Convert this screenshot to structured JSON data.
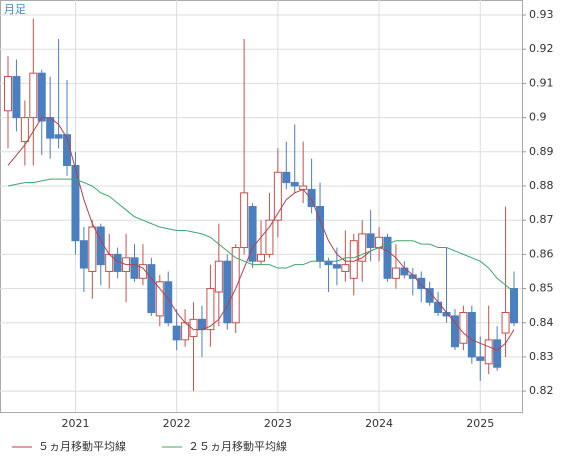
{
  "chart_data": {
    "type": "candlestick",
    "label": "月足",
    "categories": [
      null,
      null,
      null,
      null,
      null,
      null,
      null,
      null,
      "2021",
      null,
      null,
      null,
      null,
      null,
      null,
      null,
      null,
      null,
      null,
      null,
      "2022",
      null,
      null,
      null,
      null,
      null,
      null,
      null,
      null,
      null,
      null,
      null,
      "2023",
      null,
      null,
      null,
      null,
      null,
      null,
      null,
      null,
      null,
      null,
      null,
      "2024",
      null,
      null,
      null,
      null,
      null,
      null,
      null,
      null,
      null,
      null,
      null,
      "2025",
      null,
      null,
      null,
      null
    ],
    "open": [
      0.902,
      0.912,
      0.893,
      0.9,
      0.913,
      0.9,
      0.895,
      0.895,
      0.886,
      0.864,
      0.855,
      0.868,
      0.855,
      0.86,
      0.855,
      0.859,
      0.853,
      0.857,
      0.842,
      0.852,
      0.839,
      0.835,
      0.836,
      0.841,
      0.838,
      0.849,
      0.858,
      0.84,
      0.862,
      0.874,
      0.858,
      0.86,
      0.87,
      0.884,
      0.881,
      0.879,
      0.879,
      0.874,
      0.858,
      0.857,
      0.855,
      0.853,
      0.858,
      0.866,
      0.862,
      0.865,
      0.853,
      0.856,
      0.854,
      0.853,
      0.85,
      0.846,
      0.843,
      0.842,
      0.834,
      0.843,
      0.83,
      0.828,
      0.835,
      0.837,
      0.85
    ],
    "high": [
      0.918,
      0.917,
      0.905,
      0.929,
      0.914,
      0.912,
      0.923,
      0.911,
      0.89,
      0.868,
      0.87,
      0.869,
      0.866,
      0.862,
      0.866,
      0.863,
      0.863,
      0.859,
      0.854,
      0.855,
      0.844,
      0.844,
      0.846,
      0.845,
      0.857,
      0.869,
      0.86,
      0.863,
      0.923,
      0.875,
      0.87,
      0.878,
      0.891,
      0.893,
      0.898,
      0.893,
      0.888,
      0.881,
      0.859,
      0.862,
      0.867,
      0.866,
      0.87,
      0.873,
      0.868,
      0.866,
      0.863,
      0.858,
      0.856,
      0.855,
      0.852,
      0.849,
      0.862,
      0.844,
      0.845,
      0.845,
      0.836,
      0.845,
      0.839,
      0.874,
      0.855
    ],
    "low": [
      0.891,
      0.896,
      0.886,
      0.886,
      0.889,
      0.888,
      0.891,
      0.883,
      0.86,
      0.849,
      0.847,
      0.851,
      0.85,
      0.853,
      0.846,
      0.852,
      0.851,
      0.842,
      0.839,
      0.839,
      0.832,
      0.833,
      0.82,
      0.83,
      0.833,
      0.839,
      0.838,
      0.837,
      0.86,
      0.856,
      0.857,
      0.859,
      0.865,
      0.879,
      0.878,
      0.875,
      0.872,
      0.856,
      0.849,
      0.851,
      0.852,
      0.848,
      0.852,
      0.858,
      0.858,
      0.852,
      0.85,
      0.853,
      0.848,
      0.846,
      0.845,
      0.842,
      0.84,
      0.832,
      0.832,
      0.828,
      0.823,
      0.825,
      0.826,
      0.83,
      0.839
    ],
    "close": [
      0.912,
      0.9,
      0.9,
      0.913,
      0.899,
      0.894,
      0.894,
      0.886,
      0.864,
      0.856,
      0.868,
      0.857,
      0.86,
      0.855,
      0.859,
      0.853,
      0.857,
      0.843,
      0.852,
      0.84,
      0.835,
      0.84,
      0.841,
      0.838,
      0.85,
      0.858,
      0.84,
      0.862,
      0.878,
      0.858,
      0.86,
      0.87,
      0.884,
      0.881,
      0.88,
      0.88,
      0.874,
      0.858,
      0.857,
      0.856,
      0.857,
      0.864,
      0.866,
      0.862,
      0.865,
      0.853,
      0.856,
      0.854,
      0.853,
      0.85,
      0.846,
      0.843,
      0.842,
      0.833,
      0.843,
      0.83,
      0.829,
      0.835,
      0.827,
      0.843,
      0.84
    ],
    "up_color": "#c8504a",
    "down_color": "#4a7fc0",
    "series": [
      {
        "name": "５ヵ月移動平均線",
        "color": "#b8404a",
        "values": [
          0.886,
          0.889,
          0.892,
          0.896,
          0.9,
          0.9,
          0.898,
          0.894,
          0.885,
          0.876,
          0.869,
          0.864,
          0.86,
          0.858,
          0.857,
          0.857,
          0.856,
          0.853,
          0.85,
          0.847,
          0.843,
          0.84,
          0.838,
          0.838,
          0.839,
          0.841,
          0.845,
          0.85,
          0.856,
          0.862,
          0.865,
          0.868,
          0.872,
          0.876,
          0.878,
          0.879,
          0.876,
          0.87,
          0.864,
          0.86,
          0.858,
          0.858,
          0.859,
          0.861,
          0.862,
          0.861,
          0.859,
          0.856,
          0.854,
          0.851,
          0.849,
          0.846,
          0.843,
          0.84,
          0.837,
          0.835,
          0.834,
          0.833,
          0.832,
          0.834,
          0.838
        ]
      },
      {
        "name": "２５ヵ月移動平均線",
        "color": "#3aa86a",
        "values": [
          0.88,
          0.8805,
          0.881,
          0.881,
          0.8815,
          0.882,
          0.882,
          0.882,
          0.882,
          0.881,
          0.88,
          0.878,
          0.877,
          0.875,
          0.873,
          0.871,
          0.87,
          0.869,
          0.868,
          0.8675,
          0.867,
          0.867,
          0.8665,
          0.866,
          0.865,
          0.863,
          0.861,
          0.859,
          0.858,
          0.857,
          0.857,
          0.857,
          0.856,
          0.856,
          0.857,
          0.857,
          0.858,
          0.858,
          0.858,
          0.858,
          0.859,
          0.859,
          0.86,
          0.861,
          0.862,
          0.863,
          0.864,
          0.864,
          0.864,
          0.863,
          0.863,
          0.862,
          0.862,
          0.861,
          0.86,
          0.859,
          0.858,
          0.856,
          0.853,
          0.851,
          0.849
        ]
      }
    ],
    "ylim": [
      0.8139,
      0.9344
    ],
    "yticks": [
      0.82,
      0.83,
      0.84,
      0.85,
      0.86,
      0.87,
      0.88,
      0.89,
      0.9,
      0.91,
      0.92,
      0.93
    ],
    "grid": true
  }
}
